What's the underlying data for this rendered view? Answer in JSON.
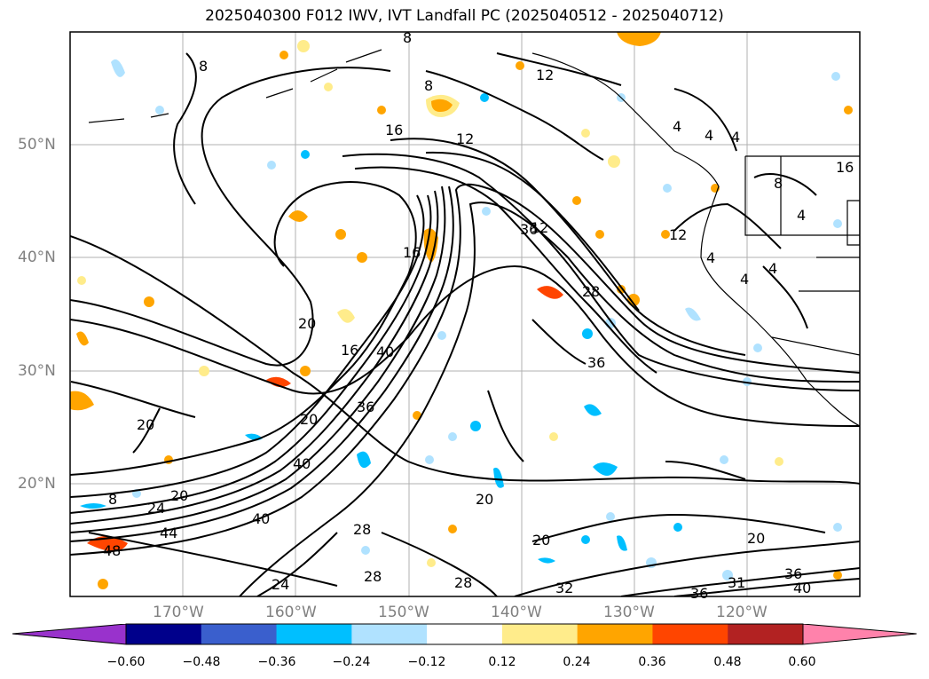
{
  "title": "2025040300 F012 IWV, IVT Landfall PC (2025040512 - 2025040712)",
  "lat_labels": [
    "50°N",
    "40°N",
    "30°N",
    "20°N"
  ],
  "lon_labels": [
    "170°W",
    "160°W",
    "150°W",
    "140°W",
    "130°W",
    "120°W"
  ],
  "contour_labels": [
    "8",
    "8",
    "8",
    "12",
    "12",
    "16",
    "12",
    "16",
    "4",
    "4",
    "4",
    "8",
    "4",
    "12",
    "36",
    "16",
    "4",
    "28",
    "4",
    "4",
    "20",
    "16",
    "40",
    "36",
    "20",
    "36",
    "20",
    "8",
    "24",
    "20",
    "44",
    "40",
    "20",
    "48",
    "28",
    "20",
    "20",
    "28",
    "24",
    "28",
    "32",
    "36",
    "36",
    "31",
    "40",
    "40"
  ],
  "colorbar": {
    "ticks": [
      "−0.60",
      "−0.48",
      "−0.36",
      "−0.24",
      "−0.12",
      "0.12",
      "0.24",
      "0.36",
      "0.48",
      "0.60"
    ],
    "colors": [
      "#9932cc",
      "#00008b",
      "#3a5fcd",
      "#00bfff",
      "#b0e2ff",
      "#ffffff",
      "#ffec8b",
      "#ffa500",
      "#ff4500",
      "#b22222",
      "#ff82ab"
    ]
  }
}
